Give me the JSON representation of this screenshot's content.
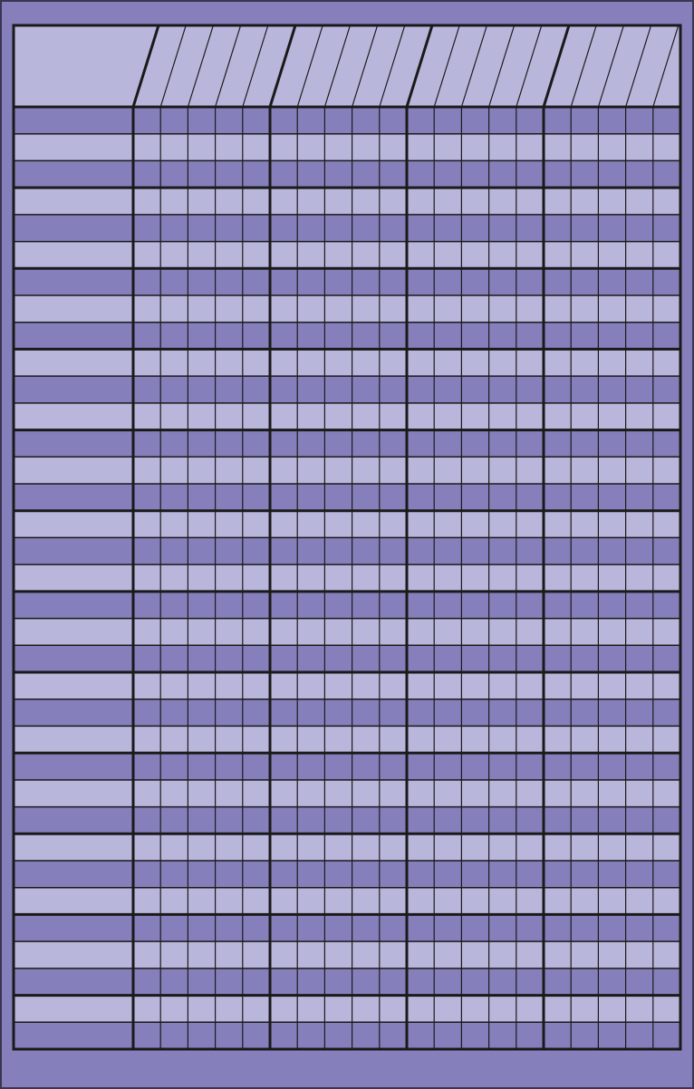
{
  "chart": {
    "student_rows": 35,
    "groups": 4,
    "cells_per_group": 5,
    "rows_per_band": 3,
    "header_labels": [],
    "row_labels": []
  },
  "colors": {
    "frame": "#8580bb",
    "frame_outline": "#3a3552",
    "light": "#b9b6dc",
    "dark": "#8580bb",
    "grid_line": "#1a1a1a"
  }
}
